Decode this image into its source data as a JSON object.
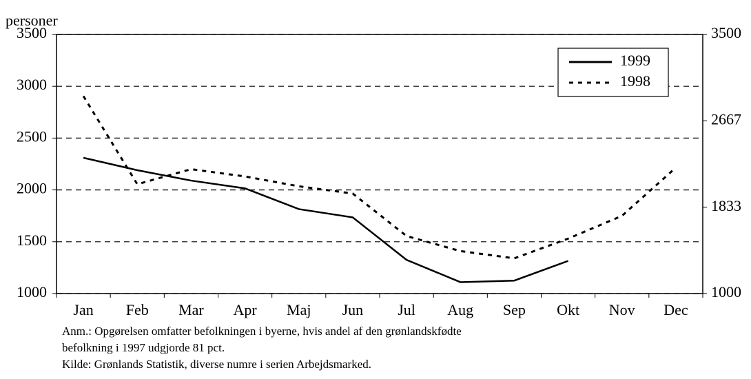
{
  "chart_data": {
    "type": "line",
    "y_label": "personer",
    "categories": [
      "Jan",
      "Feb",
      "Mar",
      "Apr",
      "Maj",
      "Jun",
      "Jul",
      "Aug",
      "Sep",
      "Okt",
      "Nov",
      "Dec"
    ],
    "series": [
      {
        "name": "1999",
        "color": "#000000",
        "line_style": "solid",
        "values": [
          2310,
          2190,
          2090,
          2015,
          1815,
          1735,
          1325,
          1110,
          1125,
          1315,
          null,
          null
        ]
      },
      {
        "name": "1998",
        "color": "#000000",
        "line_style": "dotted",
        "values": [
          2905,
          2055,
          2200,
          2130,
          2035,
          1965,
          1555,
          1410,
          1340,
          1530,
          1750,
          2215
        ]
      }
    ],
    "ylim": [
      1000,
      3500
    ],
    "yticks": [
      1000,
      1500,
      2000,
      2500,
      3000,
      3500
    ],
    "y2lim": [
      1000,
      3500
    ],
    "y2ticks": [
      1000,
      1833,
      2667,
      3500
    ],
    "grid": true,
    "legend": "upper right",
    "notes": [
      "Anm.: Opgørelsen omfatter befolkningen i byerne, hvis andel af den grønlandskfødte",
      "befolkning i 1997 udgjorde 81 pct.",
      "Kilde: Grønlands Statistik, diverse numre i serien  Arbejdsmarked."
    ]
  }
}
